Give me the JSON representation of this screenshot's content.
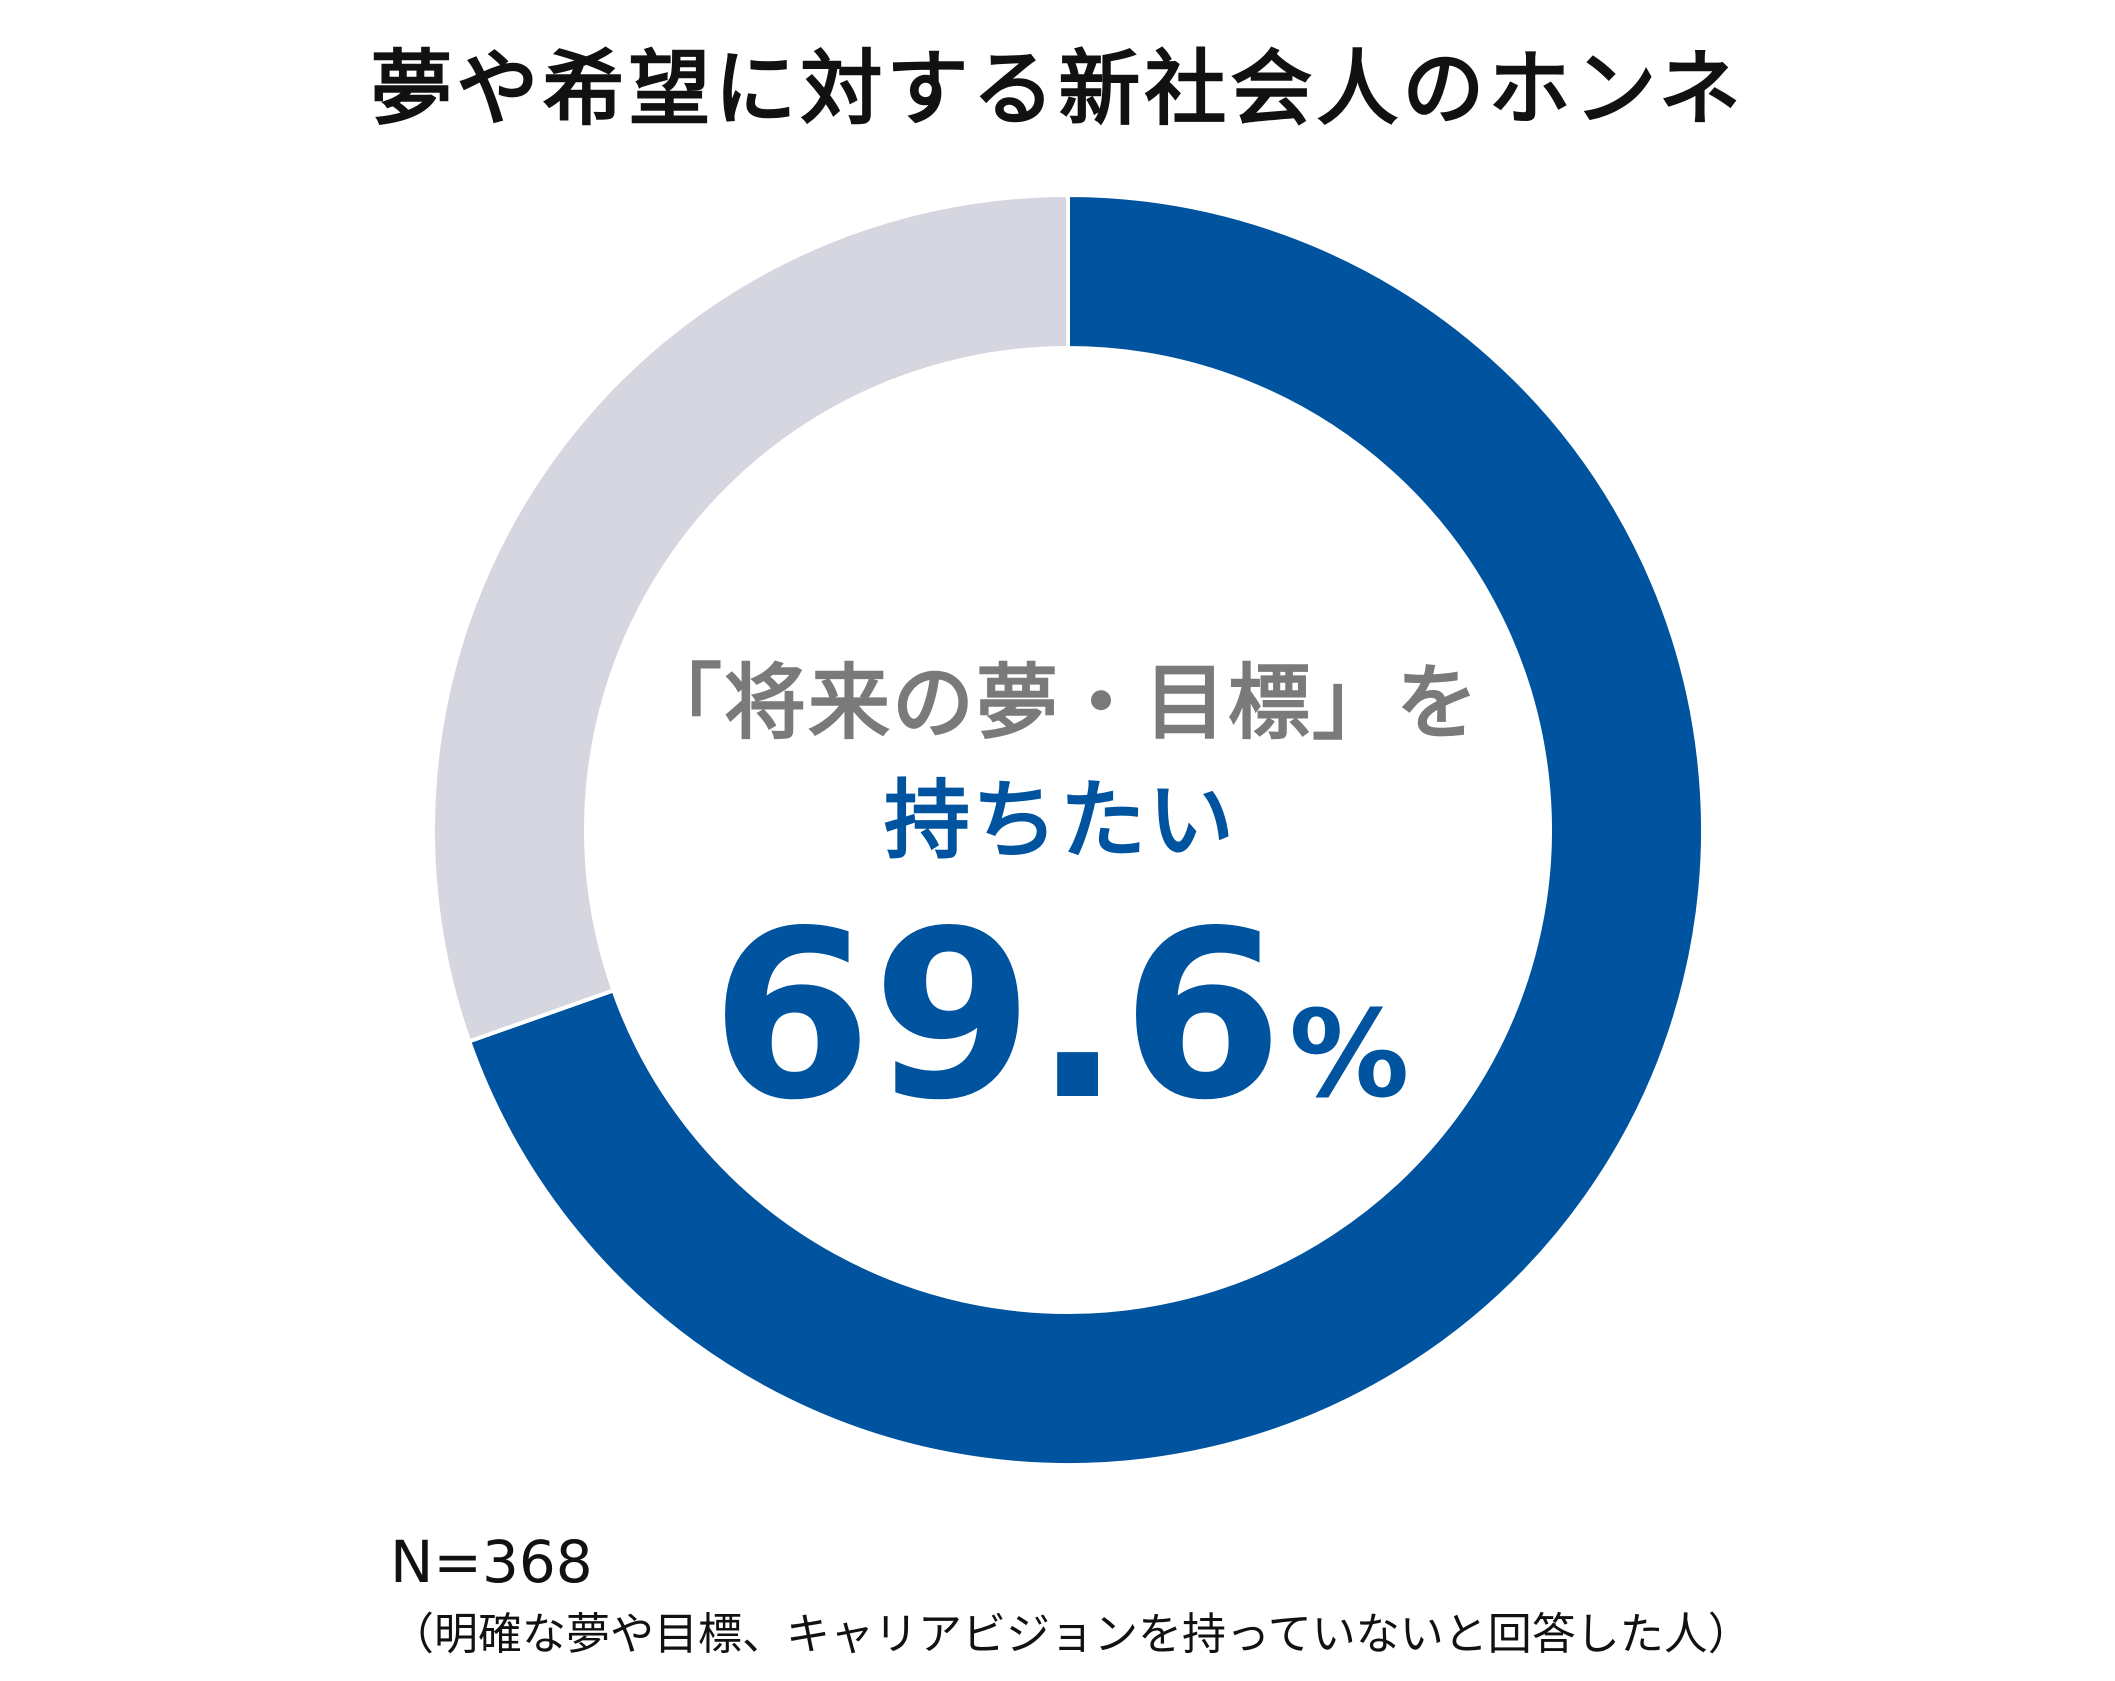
{
  "title": "夢や希望に対する新社会人のホンネ",
  "center": {
    "line1": "「将来の夢・目標」を",
    "line2": "持ちたい",
    "value": "69.6",
    "unit": "%"
  },
  "footnote": {
    "n": "N=368",
    "note": "（明確な夢や目標、キャリアビジョンを持っていないと回答した人）"
  },
  "colors": {
    "primary": "#00539f",
    "secondary": "#d5d6e0",
    "title": "#111111",
    "line1": "#7a7a7a"
  },
  "chart_data": {
    "type": "pie",
    "categories": [
      "「将来の夢・目標」を持ちたい",
      ""
    ],
    "values": [
      69.6,
      30.4
    ],
    "colors": [
      "#00539f",
      "#d5d6e0"
    ],
    "start": "top",
    "direction": "clockwise",
    "donut": true
  }
}
